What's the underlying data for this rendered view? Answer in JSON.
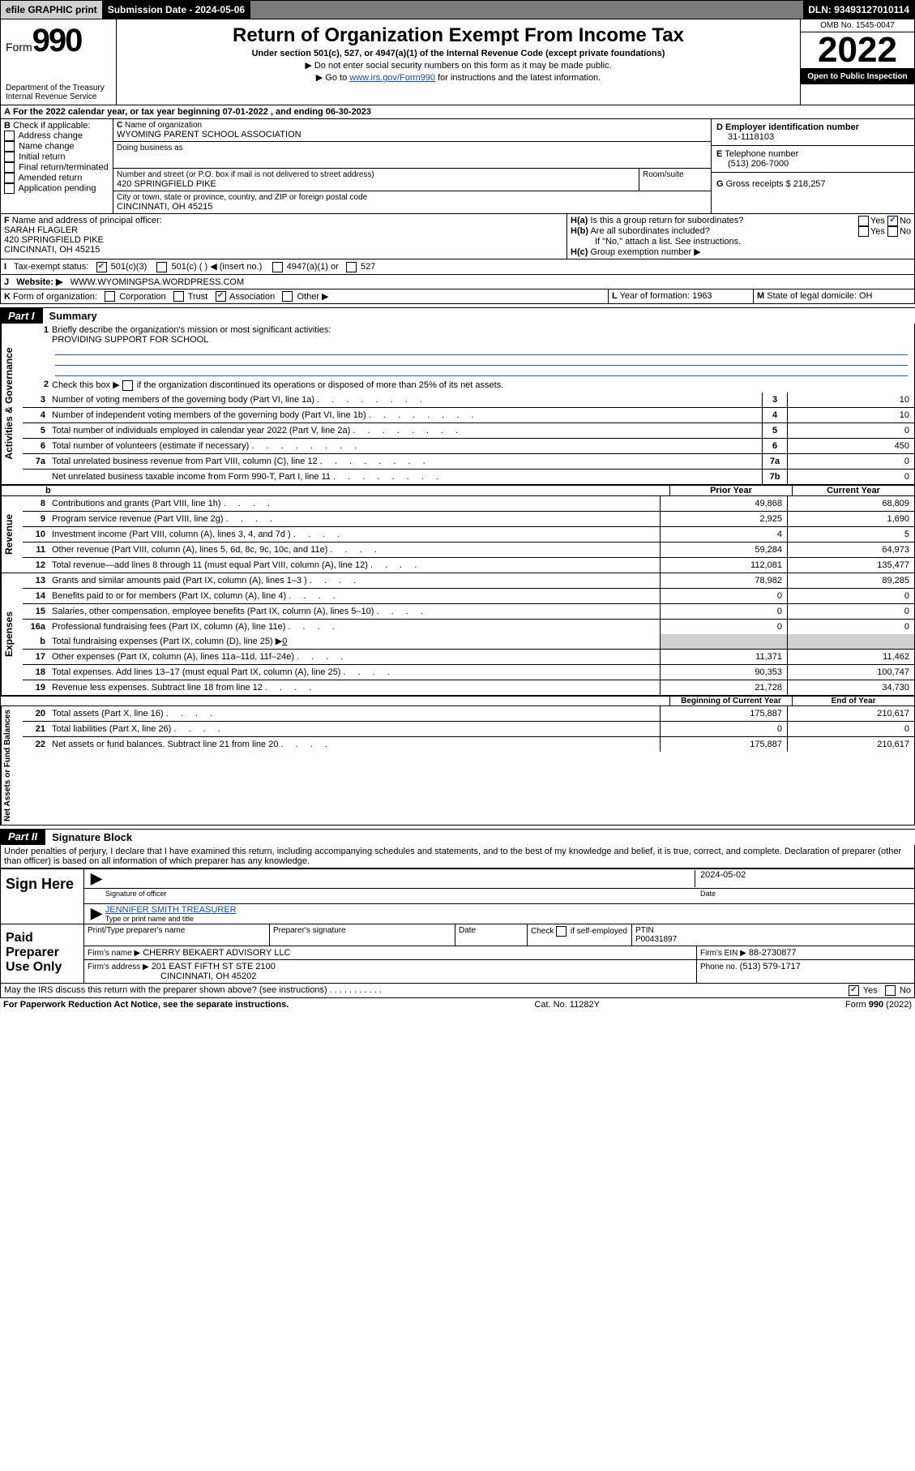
{
  "topbar": {
    "efile": "efile GRAPHIC print",
    "submission": "Submission Date - 2024-05-06",
    "dln": "DLN: 93493127010114"
  },
  "header": {
    "form_label": "Form",
    "form_num": "990",
    "dept": "Department of the Treasury",
    "irs": "Internal Revenue Service",
    "title": "Return of Organization Exempt From Income Tax",
    "sub": "Under section 501(c), 527, or 4947(a)(1) of the Internal Revenue Code (except private foundations)",
    "note1": "Do not enter social security numbers on this form as it may be made public.",
    "note2_pre": "Go to ",
    "note2_link": "www.irs.gov/Form990",
    "note2_post": " for instructions and the latest information.",
    "omb": "OMB No. 1545-0047",
    "year": "2022",
    "open": "Open to Public Inspection"
  },
  "A": {
    "line": "For the 2022 calendar year, or tax year beginning 07-01-2022   , and ending 06-30-2023"
  },
  "B": {
    "label": "Check if applicable:",
    "items": [
      "Address change",
      "Name change",
      "Initial return",
      "Final return/terminated",
      "Amended return",
      "Application pending"
    ]
  },
  "C": {
    "name_label": "Name of organization",
    "name": "WYOMING PARENT SCHOOL ASSOCIATION",
    "dba_label": "Doing business as",
    "addr_label": "Number and street (or P.O. box if mail is not delivered to street address)",
    "room_label": "Room/suite",
    "addr": "420 SPRINGFIELD PIKE",
    "city_label": "City or town, state or province, country, and ZIP or foreign postal code",
    "city": "CINCINNATI, OH  45215"
  },
  "D": {
    "label": "Employer identification number",
    "value": "31-1118103"
  },
  "E": {
    "label": "Telephone number",
    "value": "(513) 206-7000"
  },
  "G": {
    "label": "Gross receipts $",
    "value": "218,257"
  },
  "F": {
    "label": "Name and address of principal officer:",
    "name": "SARAH FLAGLER",
    "addr1": "420 SPRINGFIELD PIKE",
    "addr2": "CINCINNATI, OH  45215"
  },
  "H": {
    "a": "Is this a group return for subordinates?",
    "b": "Are all subordinates included?",
    "b_note": "If \"No,\" attach a list. See instructions.",
    "c": "Group exemption number ▶",
    "yes": "Yes",
    "no": "No"
  },
  "I": {
    "label": "Tax-exempt status:",
    "opt1": "501(c)(3)",
    "opt2": "501(c) (  ) ◀ (insert no.)",
    "opt3": "4947(a)(1) or",
    "opt4": "527"
  },
  "J": {
    "label": "Website: ▶",
    "value": "WWW.WYOMINGPSA.WORDPRESS.COM"
  },
  "K": {
    "label": "Form of organization:",
    "opts": [
      "Corporation",
      "Trust",
      "Association",
      "Other ▶"
    ]
  },
  "L": {
    "label": "Year of formation:",
    "value": "1963"
  },
  "M": {
    "label": "State of legal domicile:",
    "value": "OH"
  },
  "partI": {
    "tab": "Part I",
    "title": "Summary"
  },
  "gov": {
    "label": "Activities & Governance",
    "l1": "Briefly describe the organization's mission or most significant activities:",
    "l1v": "PROVIDING SUPPORT FOR SCHOOL",
    "l2": "Check this box ▶        if the organization discontinued its operations or disposed of more than 25% of its net assets.",
    "rows": [
      {
        "n": "3",
        "t": "Number of voting members of the governing body (Part VI, line 1a)",
        "b": "3",
        "v": "10"
      },
      {
        "n": "4",
        "t": "Number of independent voting members of the governing body (Part VI, line 1b)",
        "b": "4",
        "v": "10"
      },
      {
        "n": "5",
        "t": "Total number of individuals employed in calendar year 2022 (Part V, line 2a)",
        "b": "5",
        "v": "0"
      },
      {
        "n": "6",
        "t": "Total number of volunteers (estimate if necessary)",
        "b": "6",
        "v": "450"
      },
      {
        "n": "7a",
        "t": "Total unrelated business revenue from Part VIII, column (C), line 12",
        "b": "7a",
        "v": "0"
      },
      {
        "n": "",
        "t": "Net unrelated business taxable income from Form 990-T, Part I, line 11",
        "b": "7b",
        "v": "0"
      }
    ]
  },
  "cols": {
    "prior": "Prior Year",
    "current": "Current Year",
    "boy": "Beginning of Current Year",
    "eoy": "End of Year"
  },
  "rev": {
    "label": "Revenue",
    "rows": [
      {
        "n": "8",
        "t": "Contributions and grants (Part VIII, line 1h)",
        "p": "49,868",
        "c": "68,809"
      },
      {
        "n": "9",
        "t": "Program service revenue (Part VIII, line 2g)",
        "p": "2,925",
        "c": "1,690"
      },
      {
        "n": "10",
        "t": "Investment income (Part VIII, column (A), lines 3, 4, and 7d )",
        "p": "4",
        "c": "5"
      },
      {
        "n": "11",
        "t": "Other revenue (Part VIII, column (A), lines 5, 6d, 8c, 9c, 10c, and 11e)",
        "p": "59,284",
        "c": "64,973"
      },
      {
        "n": "12",
        "t": "Total revenue—add lines 8 through 11 (must equal Part VIII, column (A), line 12)",
        "p": "112,081",
        "c": "135,477"
      }
    ]
  },
  "exp": {
    "label": "Expenses",
    "rows": [
      {
        "n": "13",
        "t": "Grants and similar amounts paid (Part IX, column (A), lines 1–3 )",
        "p": "78,982",
        "c": "89,285"
      },
      {
        "n": "14",
        "t": "Benefits paid to or for members (Part IX, column (A), line 4)",
        "p": "0",
        "c": "0"
      },
      {
        "n": "15",
        "t": "Salaries, other compensation, employee benefits (Part IX, column (A), lines 5–10)",
        "p": "0",
        "c": "0"
      },
      {
        "n": "16a",
        "t": "Professional fundraising fees (Part IX, column (A), line 11e)",
        "p": "0",
        "c": "0"
      }
    ],
    "b": {
      "n": "b",
      "t": "Total fundraising expenses (Part IX, column (D), line 25) ▶",
      "v": "0"
    },
    "rows2": [
      {
        "n": "17",
        "t": "Other expenses (Part IX, column (A), lines 11a–11d, 11f–24e)",
        "p": "11,371",
        "c": "11,462"
      },
      {
        "n": "18",
        "t": "Total expenses. Add lines 13–17 (must equal Part IX, column (A), line 25)",
        "p": "90,353",
        "c": "100,747"
      },
      {
        "n": "19",
        "t": "Revenue less expenses. Subtract line 18 from line 12",
        "p": "21,728",
        "c": "34,730"
      }
    ]
  },
  "net": {
    "label": "Net Assets or Fund Balances",
    "rows": [
      {
        "n": "20",
        "t": "Total assets (Part X, line 16)",
        "p": "175,887",
        "c": "210,617"
      },
      {
        "n": "21",
        "t": "Total liabilities (Part X, line 26)",
        "p": "0",
        "c": "0"
      },
      {
        "n": "22",
        "t": "Net assets or fund balances. Subtract line 21 from line 20",
        "p": "175,887",
        "c": "210,617"
      }
    ]
  },
  "partII": {
    "tab": "Part II",
    "title": "Signature Block"
  },
  "perjury": "Under penalties of perjury, I declare that I have examined this return, including accompanying schedules and statements, and to the best of my knowledge and belief, it is true, correct, and complete. Declaration of preparer (other than officer) is based on all information of which preparer has any knowledge.",
  "sign": {
    "here": "Sign Here",
    "sig_label": "Signature of officer",
    "date_label": "Date",
    "date": "2024-05-02",
    "name": "JENNIFER SMITH TREASURER",
    "name_label": "Type or print name and title"
  },
  "paid": {
    "label": "Paid Preparer Use Only",
    "h1": "Print/Type preparer's name",
    "h2": "Preparer's signature",
    "h3": "Date",
    "h4_pre": "Check",
    "h4_post": "if self-employed",
    "ptin_label": "PTIN",
    "ptin": "P00431897",
    "firm_name_label": "Firm's name   ▶",
    "firm_name": "CHERRY BEKAERT ADVISORY LLC",
    "firm_ein_label": "Firm's EIN ▶",
    "firm_ein": "88-2730877",
    "firm_addr_label": "Firm's address ▶",
    "firm_addr1": "201 EAST FIFTH ST STE 2100",
    "firm_addr2": "CINCINNATI, OH  45202",
    "phone_label": "Phone no.",
    "phone": "(513) 579-1717"
  },
  "discuss": "May the IRS discuss this return with the preparer shown above? (see instructions)",
  "footer": {
    "left": "For Paperwork Reduction Act Notice, see the separate instructions.",
    "mid": "Cat. No. 11282Y",
    "right": "Form 990 (2022)"
  }
}
